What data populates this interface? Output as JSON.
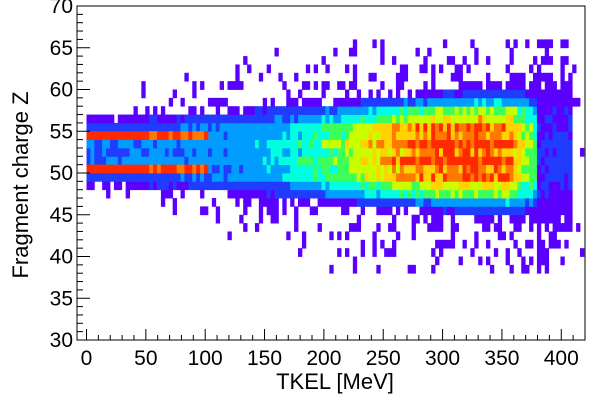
{
  "chart_data": {
    "type": "heatmap",
    "xlabel": "TKEL [MeV]",
    "ylabel": "Fragment charge Z",
    "xlim": [
      -8,
      420
    ],
    "ylim": [
      30,
      70
    ],
    "x_ticks": [
      0,
      50,
      100,
      150,
      200,
      250,
      300,
      350,
      400
    ],
    "y_ticks": [
      30,
      35,
      40,
      45,
      50,
      55,
      60,
      65,
      70
    ],
    "grid": false,
    "legend": "none",
    "colormap": [
      "#5a00ff",
      "#1f3cff",
      "#009dff",
      "#00ffe0",
      "#3cff5a",
      "#c8ff00",
      "#ffd200",
      "#ff7800",
      "#ff2a00"
    ],
    "bin_width_x": 3.3,
    "bin_width_y": 1,
    "bands": [
      {
        "z_center": 50.5,
        "intensity": 1.0,
        "x_start": 0,
        "x_end": 100
      },
      {
        "z_center": 54.5,
        "intensity": 1.0,
        "x_start": 0,
        "x_end": 100
      }
    ],
    "hotspot": {
      "tkel": 315,
      "z": 52,
      "intensity": 1.0
    },
    "z_core_range": [
      47,
      57
    ],
    "tkel_endpoint": 380,
    "tail_z_range": [
      38,
      66
    ]
  }
}
